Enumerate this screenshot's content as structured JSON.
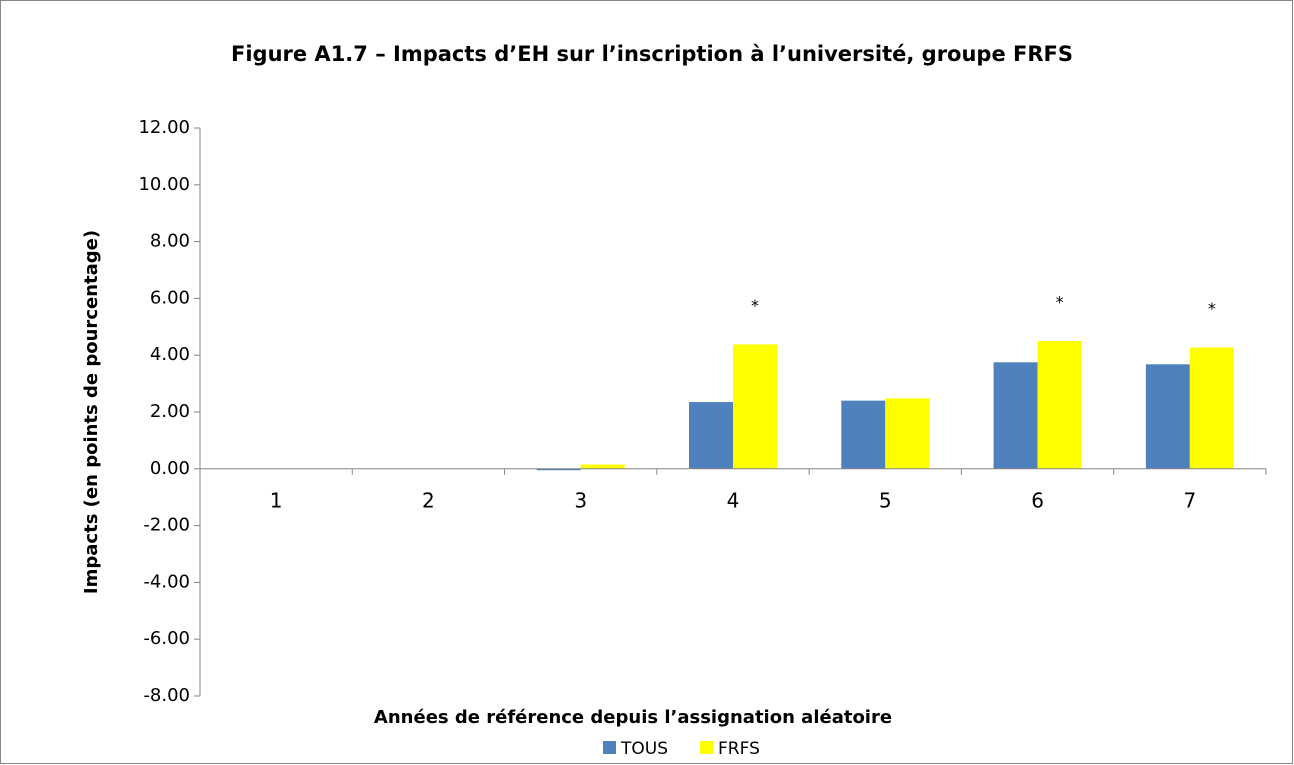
{
  "chart_data": {
    "type": "bar",
    "title": "Figure A1.7 – Impacts d’EH sur l’inscription à l’université, groupe FRFS",
    "x_label": "Années de référence depuis l’assignation aléatoire",
    "y_label": "Impacts (en points de pourcentage)",
    "categories": [
      "1",
      "2",
      "3",
      "4",
      "5",
      "6",
      "7"
    ],
    "series": [
      {
        "name": "TOUS",
        "color": "#4f81bd",
        "values": [
          0,
          0,
          -0.05,
          2.35,
          2.4,
          3.75,
          3.68
        ]
      },
      {
        "name": "FRFS",
        "color": "#ffff00",
        "values": [
          0,
          0,
          0.15,
          4.38,
          2.48,
          4.5,
          4.27
        ]
      }
    ],
    "annotations": [
      {
        "x": "4",
        "series": "FRFS",
        "text": "*"
      },
      {
        "x": "6",
        "series": "FRFS",
        "text": "*"
      },
      {
        "x": "7",
        "series": "FRFS",
        "text": "*"
      }
    ],
    "ylim": [
      -8,
      12
    ],
    "yticks": [
      {
        "value": -8,
        "label": "-8.00"
      },
      {
        "value": -6,
        "label": "-6.00"
      },
      {
        "value": -4,
        "label": "-4.00"
      },
      {
        "value": -2,
        "label": "-2.00"
      },
      {
        "value": 0,
        "label": "0.00"
      },
      {
        "value": 2,
        "label": "2.00"
      },
      {
        "value": 4,
        "label": "4.00"
      },
      {
        "value": 6,
        "label": "6.00"
      },
      {
        "value": 8,
        "label": "8.00"
      },
      {
        "value": 10,
        "label": "10.00"
      },
      {
        "value": 12,
        "label": "12.00"
      }
    ],
    "grid": false,
    "legend": "bottom"
  }
}
